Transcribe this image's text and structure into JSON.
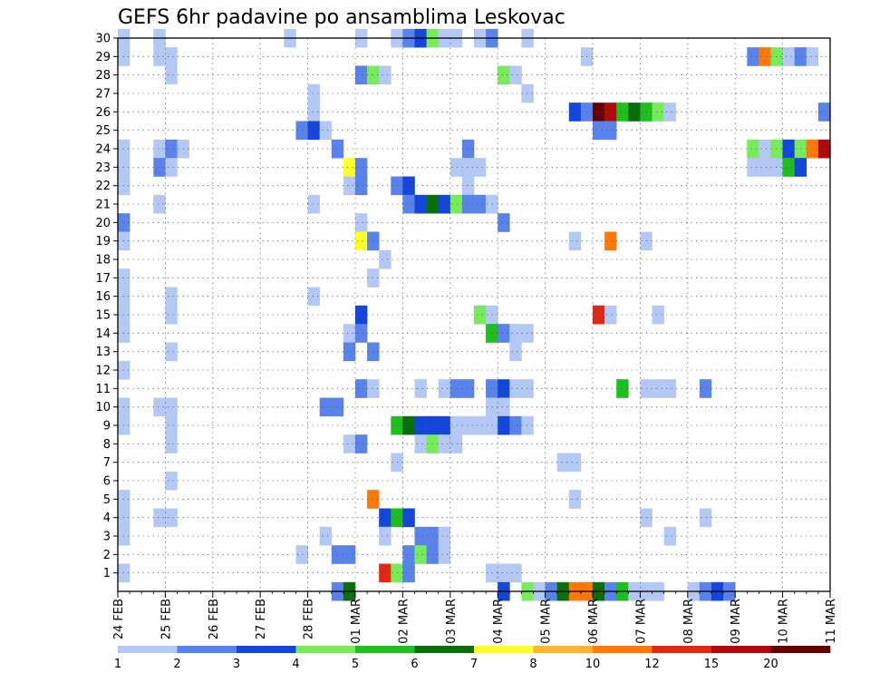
{
  "chart_data": {
    "type": "heatmap",
    "title": "GEFS 6hr padavine po ansamblima Leskovac",
    "y_label_values": [
      "1",
      "2",
      "3",
      "4",
      "5",
      "6",
      "7",
      "8",
      "9",
      "10",
      "11",
      "12",
      "13",
      "14",
      "15",
      "16",
      "17",
      "18",
      "19",
      "20",
      "21",
      "22",
      "23",
      "24",
      "25",
      "26",
      "27",
      "28",
      "29",
      "30"
    ],
    "ylim": [
      0,
      30
    ],
    "x_tick_labels": [
      "24 FEB",
      "25 FEB",
      "26 FEB",
      "27 FEB",
      "28 FEB",
      "01 MAR",
      "02 MAR",
      "03 MAR",
      "04 MAR",
      "05 MAR",
      "06 MAR",
      "07 MAR",
      "08 MAR",
      "09 MAR",
      "10 MAR",
      "11 MAR"
    ],
    "time_steps": 60,
    "steps_per_day": 4,
    "grid": true,
    "legend": {
      "position": "bottom",
      "labels": [
        "1",
        "2",
        "3",
        "4",
        "5",
        "6",
        "7",
        "8",
        "10",
        "12",
        "15",
        "20"
      ],
      "colors": [
        "#b4c8f5",
        "#5a82eb",
        "#1446dc",
        "#78eb5a",
        "#1ebe1e",
        "#0a6e0a",
        "#ffff28",
        "#ffb432",
        "#ff780a",
        "#e12814",
        "#af0a0a",
        "#640000"
      ]
    },
    "cells": [
      [
        0,
        30,
        0
      ],
      [
        3,
        30,
        0
      ],
      [
        14,
        30,
        0
      ],
      [
        20,
        30,
        0
      ],
      [
        23,
        30,
        0
      ],
      [
        24,
        30,
        1
      ],
      [
        25,
        30,
        2
      ],
      [
        26,
        30,
        3
      ],
      [
        27,
        30,
        0
      ],
      [
        28,
        30,
        0
      ],
      [
        30,
        30,
        0
      ],
      [
        31,
        30,
        1
      ],
      [
        34,
        30,
        0
      ],
      [
        0,
        29,
        0
      ],
      [
        3,
        29,
        0
      ],
      [
        4,
        29,
        0
      ],
      [
        39,
        29,
        0
      ],
      [
        53,
        29,
        1
      ],
      [
        54,
        29,
        8
      ],
      [
        55,
        29,
        3
      ],
      [
        56,
        29,
        0
      ],
      [
        57,
        29,
        1
      ],
      [
        58,
        29,
        0
      ],
      [
        4,
        28,
        0
      ],
      [
        20,
        28,
        1
      ],
      [
        21,
        28,
        3
      ],
      [
        22,
        28,
        0
      ],
      [
        32,
        28,
        3
      ],
      [
        33,
        28,
        0
      ],
      [
        16,
        27,
        0
      ],
      [
        34,
        27,
        0
      ],
      [
        16,
        26,
        0
      ],
      [
        38,
        26,
        2
      ],
      [
        39,
        26,
        1
      ],
      [
        40,
        26,
        11
      ],
      [
        41,
        26,
        10
      ],
      [
        42,
        26,
        4
      ],
      [
        43,
        26,
        5
      ],
      [
        44,
        26,
        4
      ],
      [
        45,
        26,
        3
      ],
      [
        46,
        26,
        0
      ],
      [
        59,
        26,
        1
      ],
      [
        15,
        25,
        1
      ],
      [
        16,
        25,
        2
      ],
      [
        17,
        25,
        0
      ],
      [
        40,
        25,
        1
      ],
      [
        41,
        25,
        1
      ],
      [
        0,
        24,
        0
      ],
      [
        3,
        24,
        0
      ],
      [
        4,
        24,
        1
      ],
      [
        5,
        24,
        0
      ],
      [
        18,
        24,
        1
      ],
      [
        29,
        24,
        1
      ],
      [
        53,
        24,
        3
      ],
      [
        54,
        24,
        0
      ],
      [
        55,
        24,
        3
      ],
      [
        56,
        24,
        2
      ],
      [
        57,
        24,
        3
      ],
      [
        58,
        24,
        8
      ],
      [
        59,
        24,
        10
      ],
      [
        0,
        23,
        0
      ],
      [
        3,
        23,
        1
      ],
      [
        4,
        23,
        0
      ],
      [
        19,
        23,
        6
      ],
      [
        20,
        23,
        1
      ],
      [
        28,
        23,
        0
      ],
      [
        29,
        23,
        0
      ],
      [
        30,
        23,
        0
      ],
      [
        53,
        23,
        0
      ],
      [
        54,
        23,
        0
      ],
      [
        55,
        23,
        0
      ],
      [
        56,
        23,
        4
      ],
      [
        57,
        23,
        2
      ],
      [
        0,
        22,
        0
      ],
      [
        19,
        22,
        0
      ],
      [
        20,
        22,
        1
      ],
      [
        23,
        22,
        1
      ],
      [
        24,
        22,
        2
      ],
      [
        29,
        22,
        0
      ],
      [
        3,
        21,
        0
      ],
      [
        16,
        21,
        0
      ],
      [
        24,
        21,
        1
      ],
      [
        25,
        21,
        2
      ],
      [
        26,
        21,
        5
      ],
      [
        27,
        21,
        2
      ],
      [
        28,
        21,
        3
      ],
      [
        29,
        21,
        1
      ],
      [
        30,
        21,
        1
      ],
      [
        31,
        21,
        0
      ],
      [
        0,
        20,
        1
      ],
      [
        20,
        20,
        0
      ],
      [
        32,
        20,
        1
      ],
      [
        0,
        19,
        0
      ],
      [
        20,
        19,
        6
      ],
      [
        21,
        19,
        1
      ],
      [
        38,
        19,
        0
      ],
      [
        41,
        19,
        8
      ],
      [
        44,
        19,
        0
      ],
      [
        22,
        18,
        0
      ],
      [
        0,
        17,
        0
      ],
      [
        21,
        17,
        0
      ],
      [
        0,
        16,
        0
      ],
      [
        4,
        16,
        0
      ],
      [
        16,
        16,
        0
      ],
      [
        0,
        15,
        0
      ],
      [
        4,
        15,
        0
      ],
      [
        20,
        15,
        2
      ],
      [
        30,
        15,
        3
      ],
      [
        31,
        15,
        0
      ],
      [
        40,
        15,
        9
      ],
      [
        41,
        15,
        0
      ],
      [
        45,
        15,
        0
      ],
      [
        0,
        14,
        0
      ],
      [
        19,
        14,
        0
      ],
      [
        20,
        14,
        1
      ],
      [
        31,
        14,
        4
      ],
      [
        32,
        14,
        1
      ],
      [
        33,
        14,
        0
      ],
      [
        34,
        14,
        0
      ],
      [
        4,
        13,
        0
      ],
      [
        19,
        13,
        1
      ],
      [
        21,
        13,
        1
      ],
      [
        33,
        13,
        0
      ],
      [
        0,
        12,
        0
      ],
      [
        20,
        11,
        1
      ],
      [
        21,
        11,
        0
      ],
      [
        25,
        11,
        0
      ],
      [
        27,
        11,
        0
      ],
      [
        28,
        11,
        1
      ],
      [
        29,
        11,
        1
      ],
      [
        31,
        11,
        1
      ],
      [
        32,
        11,
        2
      ],
      [
        33,
        11,
        0
      ],
      [
        34,
        11,
        0
      ],
      [
        42,
        11,
        4
      ],
      [
        44,
        11,
        0
      ],
      [
        45,
        11,
        0
      ],
      [
        46,
        11,
        0
      ],
      [
        49,
        11,
        1
      ],
      [
        0,
        10,
        0
      ],
      [
        3,
        10,
        0
      ],
      [
        4,
        10,
        0
      ],
      [
        17,
        10,
        1
      ],
      [
        18,
        10,
        1
      ],
      [
        31,
        10,
        0
      ],
      [
        32,
        10,
        0
      ],
      [
        0,
        9,
        0
      ],
      [
        4,
        9,
        0
      ],
      [
        23,
        9,
        4
      ],
      [
        24,
        9,
        5
      ],
      [
        25,
        9,
        2
      ],
      [
        26,
        9,
        2
      ],
      [
        27,
        9,
        2
      ],
      [
        28,
        9,
        0
      ],
      [
        29,
        9,
        0
      ],
      [
        30,
        9,
        0
      ],
      [
        31,
        9,
        0
      ],
      [
        32,
        9,
        2
      ],
      [
        33,
        9,
        1
      ],
      [
        34,
        9,
        0
      ],
      [
        4,
        8,
        0
      ],
      [
        19,
        8,
        0
      ],
      [
        20,
        8,
        1
      ],
      [
        25,
        8,
        0
      ],
      [
        26,
        8,
        3
      ],
      [
        27,
        8,
        0
      ],
      [
        28,
        8,
        0
      ],
      [
        23,
        7,
        0
      ],
      [
        37,
        7,
        0
      ],
      [
        38,
        7,
        0
      ],
      [
        4,
        6,
        0
      ],
      [
        0,
        5,
        0
      ],
      [
        21,
        5,
        8
      ],
      [
        38,
        5,
        0
      ],
      [
        0,
        4,
        0
      ],
      [
        3,
        4,
        0
      ],
      [
        4,
        4,
        0
      ],
      [
        22,
        4,
        2
      ],
      [
        23,
        4,
        4
      ],
      [
        24,
        4,
        2
      ],
      [
        44,
        4,
        0
      ],
      [
        49,
        4,
        0
      ],
      [
        0,
        3,
        0
      ],
      [
        17,
        3,
        0
      ],
      [
        22,
        3,
        0
      ],
      [
        25,
        3,
        1
      ],
      [
        26,
        3,
        1
      ],
      [
        27,
        3,
        0
      ],
      [
        46,
        3,
        0
      ],
      [
        15,
        2,
        0
      ],
      [
        18,
        2,
        1
      ],
      [
        19,
        2,
        1
      ],
      [
        24,
        2,
        1
      ],
      [
        25,
        2,
        3
      ],
      [
        26,
        2,
        1
      ],
      [
        27,
        2,
        0
      ],
      [
        0,
        1,
        0
      ],
      [
        22,
        1,
        9
      ],
      [
        23,
        1,
        3
      ],
      [
        24,
        1,
        1
      ],
      [
        31,
        1,
        0
      ],
      [
        32,
        1,
        0
      ],
      [
        33,
        1,
        0
      ],
      [
        18,
        0,
        1
      ],
      [
        19,
        0,
        5
      ],
      [
        32,
        0,
        2
      ],
      [
        34,
        0,
        3
      ],
      [
        35,
        0,
        0
      ],
      [
        36,
        0,
        1
      ],
      [
        37,
        0,
        5
      ],
      [
        38,
        0,
        8
      ],
      [
        39,
        0,
        8
      ],
      [
        40,
        0,
        5
      ],
      [
        41,
        0,
        1
      ],
      [
        42,
        0,
        4
      ],
      [
        43,
        0,
        0
      ],
      [
        44,
        0,
        0
      ],
      [
        45,
        0,
        0
      ],
      [
        48,
        0,
        0
      ],
      [
        49,
        0,
        1
      ],
      [
        50,
        0,
        2
      ],
      [
        51,
        0,
        1
      ]
    ]
  }
}
